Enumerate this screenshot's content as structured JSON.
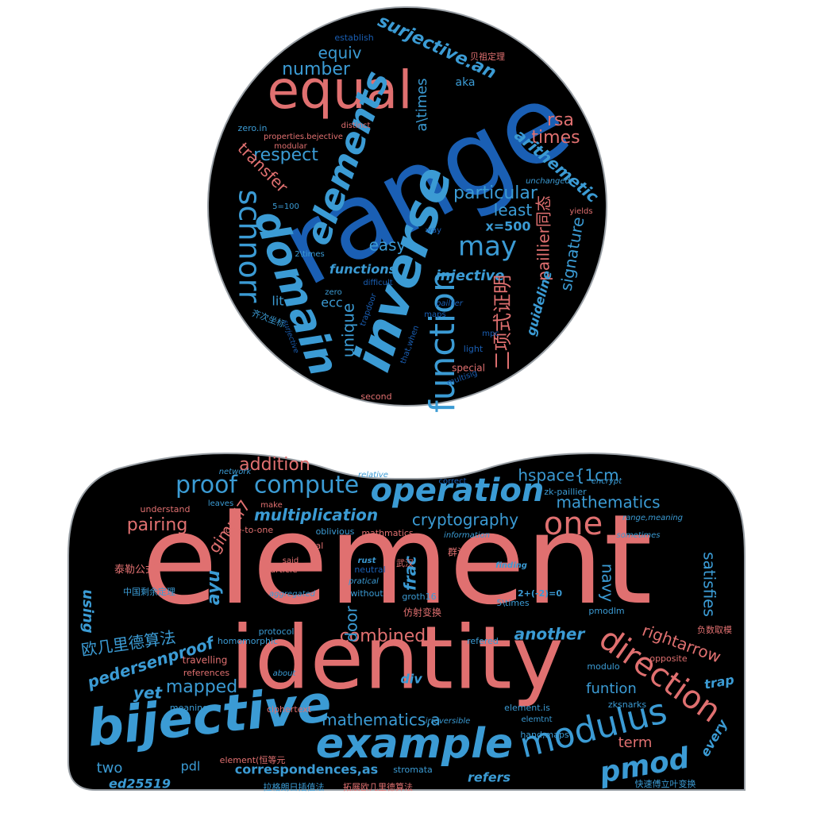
{
  "head_words": [
    "range",
    "equal",
    "elements",
    "domain",
    "inverse",
    "function",
    "schnorr",
    "may",
    "number",
    "equiv",
    "surjective.an",
    "a\\times",
    "rsa",
    "times",
    "arithemetic",
    "respect",
    "transfer",
    "particular",
    "least",
    "paillier同态",
    "x=500",
    "easy",
    "functions",
    "injective",
    "signature",
    "二项式证明",
    "unique",
    "ecc",
    "lit",
    "guideline",
    "aka",
    "establish",
    "贝祖定理",
    "zero.in",
    "distinct",
    "properties.bejective",
    "modular",
    "unchanged",
    "5=100",
    "way",
    "yields",
    "2\\times",
    "difficult",
    "zero",
    "trapdoor",
    "paillier",
    "maps",
    "mpc",
    "齐次坐标",
    "surjective",
    "that,when",
    "light",
    "special",
    "multisig",
    "second"
  ],
  "body_words": [
    "element",
    "identity",
    "bijective",
    "example",
    "modulus",
    "direction",
    "operation",
    "one",
    "proof",
    "compute",
    "addition",
    "pmod",
    "combined",
    "mapped",
    "pairing",
    "multiplication",
    "cryptography",
    "mathematics",
    "hspace{1cm",
    "another",
    "frac",
    "door",
    "navy",
    "satisfies",
    "rightarrow",
    "gimmi7",
    "ayu",
    "using",
    "欧几里德算法",
    "pedersenproof",
    "yet",
    "mathematics,a",
    "correspondences,as",
    "refers",
    "term",
    "every",
    "trap",
    "funtion",
    "div",
    "pdl",
    "two",
    "ed25519",
    "network",
    "relative",
    "correct",
    "encrypt",
    "zk-paillier",
    "understand",
    "leaves",
    "make",
    "range,meaning",
    "sometimes",
    "one-to-one",
    "oblivious",
    "mathmatics",
    "information",
    "coal",
    "群论",
    "泰勒公式",
    "said",
    "particle",
    "rust",
    "neutral",
    "武汉",
    "finding",
    "pratical",
    "中国剩余定理",
    "aggregated",
    "without",
    "groth16",
    "2+(-2)=0",
    "5\\times",
    "仿射变换",
    "pmodlm",
    "protocol",
    "homomorphic",
    "refered",
    "负数取模",
    "travelling",
    "references",
    "opposite",
    "about",
    "modulo",
    "meaning",
    "ciphertext",
    "element.is",
    "zksnarks",
    "irreversible",
    "elemtnt",
    "hand,maps",
    "element(恒等元",
    "stromata",
    "拉格朗日插值法",
    "拓展欧几里德算法",
    "快速傅立叶变换"
  ]
}
